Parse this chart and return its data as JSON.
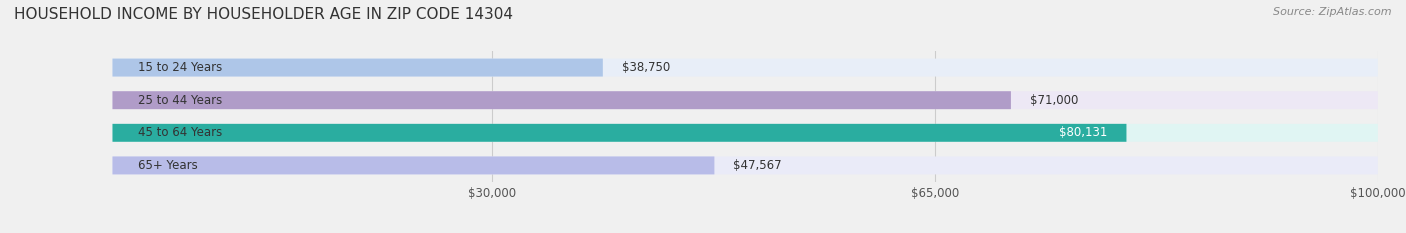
{
  "title": "HOUSEHOLD INCOME BY HOUSEHOLDER AGE IN ZIP CODE 14304",
  "source": "Source: ZipAtlas.com",
  "categories": [
    "15 to 24 Years",
    "25 to 44 Years",
    "45 to 64 Years",
    "65+ Years"
  ],
  "values": [
    38750,
    71000,
    80131,
    47567
  ],
  "bar_colors": [
    "#aec6e8",
    "#b09cc8",
    "#2aada0",
    "#b8bce8"
  ],
  "bar_bg_colors": [
    "#e8eef8",
    "#ede8f5",
    "#e0f5f3",
    "#eaebf8"
  ],
  "value_labels": [
    "$38,750",
    "$71,000",
    "$80,131",
    "$47,567"
  ],
  "xmin": 0,
  "xmax": 100000,
  "xticks": [
    30000,
    65000,
    100000
  ],
  "xtick_labels": [
    "$30,000",
    "$65,000",
    "$100,000"
  ],
  "title_fontsize": 11,
  "label_fontsize": 8.5,
  "tick_fontsize": 8.5,
  "source_fontsize": 8,
  "bg_color": "#f0f0f0",
  "bar_height": 0.55
}
